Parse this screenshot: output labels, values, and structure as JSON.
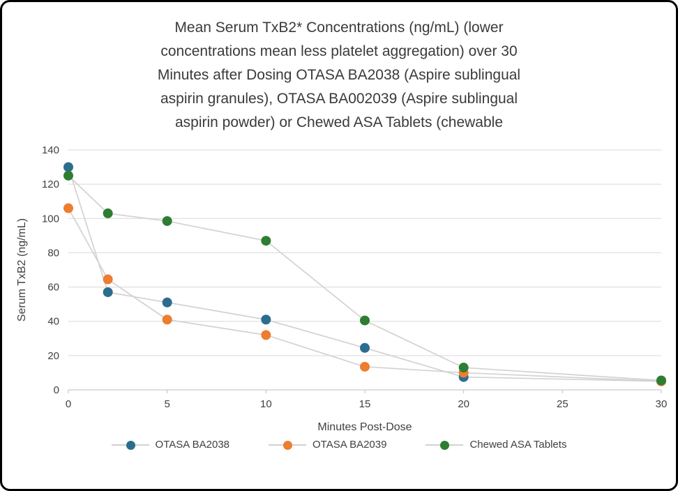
{
  "frame": {
    "border_color": "#000000",
    "background": "#ffffff"
  },
  "chart_data": {
    "type": "line",
    "title": "Mean Serum TxB2* Concentrations (ng/mL) (lower concentrations mean less platelet aggregation) over 30 Minutes after Dosing OTASA BA2038 (Aspire sublingual aspirin granules), OTASA BA002039 (Aspire sublingual aspirin powder) or Chewed ASA Tablets (chewable",
    "title_lines": [
      "Mean Serum TxB2* Concentrations (ng/mL) (lower",
      "concentrations mean less platelet aggregation) over 30",
      "Minutes after Dosing OTASA BA2038 (Aspire sublingual",
      "aspirin granules), OTASA BA002039 (Aspire sublingual",
      "aspirin powder) or Chewed ASA Tablets (chewable"
    ],
    "xlabel": "Minutes Post-Dose",
    "ylabel": "Serum TxB2 (ng/mL)",
    "x": [
      0,
      2,
      5,
      10,
      15,
      20,
      30
    ],
    "series": [
      {
        "name": "OTASA BA2038",
        "color": "#2b6d8f",
        "values": [
          130,
          57,
          51,
          41,
          24.5,
          7.5,
          5
        ]
      },
      {
        "name": "OTASA BA2039",
        "color": "#ed7d31",
        "values": [
          106,
          64.5,
          41,
          32,
          13.5,
          10,
          5
        ]
      },
      {
        "name": "Chewed ASA Tablets",
        "color": "#2e7d32",
        "values": [
          125,
          103,
          98.5,
          87,
          40.5,
          13,
          5.5
        ]
      }
    ],
    "xlim": [
      0,
      30
    ],
    "ylim": [
      0,
      140
    ],
    "x_ticks": [
      0,
      5,
      10,
      15,
      20,
      25,
      30
    ],
    "y_ticks": [
      0,
      20,
      40,
      60,
      80,
      100,
      120,
      140
    ],
    "grid": true,
    "legend_position": "bottom",
    "marker_radius": 7,
    "connector_color": "#d2d2d2",
    "grid_color": "#d9d9d9",
    "axis_line_color": "#bfbfbf",
    "text_color": "#404040",
    "title_color": "#3a3a3a"
  }
}
